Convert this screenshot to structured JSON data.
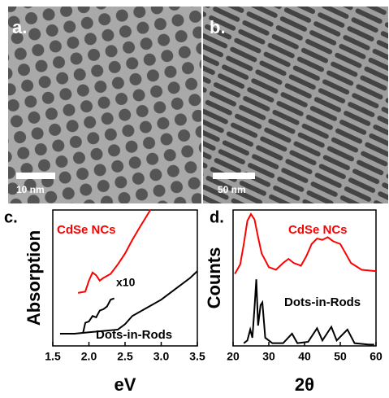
{
  "panels": [
    {
      "label": "a.",
      "scale_bar": "10 nm"
    },
    {
      "label": "b.",
      "scale_bar": "50 nm"
    }
  ],
  "chart_data": [
    {
      "type": "line",
      "panel_label": "c.",
      "xlabel": "eV",
      "ylabel": "Absorption",
      "xlim": [
        1.5,
        3.5
      ],
      "xticks": [
        {
          "value": 1.5,
          "label": "1.5"
        },
        {
          "value": 2,
          "label": "2.0"
        },
        {
          "value": 2.5,
          "label": "2.5"
        },
        {
          "value": 3,
          "label": "3.0"
        },
        {
          "value": 3.5,
          "label": "3.5"
        }
      ],
      "ylim": [
        0,
        1
      ],
      "series": [
        {
          "name": "CdSe NCs",
          "color": "#ff0000",
          "x": [
            1.85,
            1.95,
            2.0,
            2.05,
            2.1,
            2.15,
            2.2,
            2.3,
            2.4,
            2.5,
            2.6,
            2.7,
            2.85
          ],
          "values": [
            0.39,
            0.4,
            0.48,
            0.54,
            0.52,
            0.48,
            0.5,
            0.53,
            0.6,
            0.68,
            0.78,
            0.87,
            1.0
          ]
        },
        {
          "name": "Dots-in-Rods",
          "color": "#000000",
          "x": [
            1.6,
            1.8,
            2.0,
            2.2,
            2.4,
            2.5,
            2.6,
            2.8,
            3.0,
            3.2,
            3.4,
            3.5
          ],
          "values": [
            0.09,
            0.09,
            0.1,
            0.11,
            0.12,
            0.16,
            0.22,
            0.28,
            0.34,
            0.42,
            0.5,
            0.55
          ],
          "inset": {
            "label": "x10",
            "x": [
              1.92,
              1.95,
              2.0,
              2.05,
              2.1,
              2.15,
              2.2,
              2.25,
              2.3,
              2.35
            ],
            "values": [
              0.1,
              0.17,
              0.18,
              0.22,
              0.21,
              0.26,
              0.27,
              0.29,
              0.34,
              0.35
            ]
          }
        }
      ]
    },
    {
      "type": "line",
      "panel_label": "d.",
      "xlabel": "2θ",
      "ylabel": "Counts",
      "xlim": [
        20,
        60
      ],
      "xticks": [
        20,
        30,
        40,
        50,
        60
      ],
      "ylim": [
        0,
        1
      ],
      "series": [
        {
          "name": "CdSe NCs",
          "color": "#ff0000",
          "x": [
            20.5,
            22,
            23,
            24,
            25,
            26,
            27,
            28,
            30,
            32,
            34,
            35.5,
            37,
            39,
            40.5,
            42,
            43.5,
            45,
            46.5,
            48,
            50,
            51.5,
            53,
            56,
            60
          ],
          "values": [
            0.53,
            0.6,
            0.75,
            0.92,
            0.97,
            0.93,
            0.8,
            0.68,
            0.58,
            0.56,
            0.61,
            0.64,
            0.61,
            0.59,
            0.66,
            0.75,
            0.79,
            0.78,
            0.8,
            0.77,
            0.75,
            0.68,
            0.61,
            0.56,
            0.55
          ]
        },
        {
          "name": "Dots-in-Rods",
          "color": "#000000",
          "x": [
            23,
            24,
            24.8,
            25.4,
            26,
            26.5,
            27,
            27.7,
            28.2,
            29,
            31,
            34,
            36.5,
            38,
            41,
            43.5,
            45,
            47.5,
            49,
            52,
            54,
            58,
            59.5
          ],
          "values": [
            0.02,
            0.04,
            0.12,
            0.06,
            0.28,
            0.49,
            0.15,
            0.3,
            0.32,
            0.06,
            0.02,
            0.02,
            0.09,
            0.02,
            0.03,
            0.13,
            0.04,
            0.14,
            0.04,
            0.12,
            0.02,
            0.01,
            0.01
          ]
        }
      ]
    }
  ]
}
